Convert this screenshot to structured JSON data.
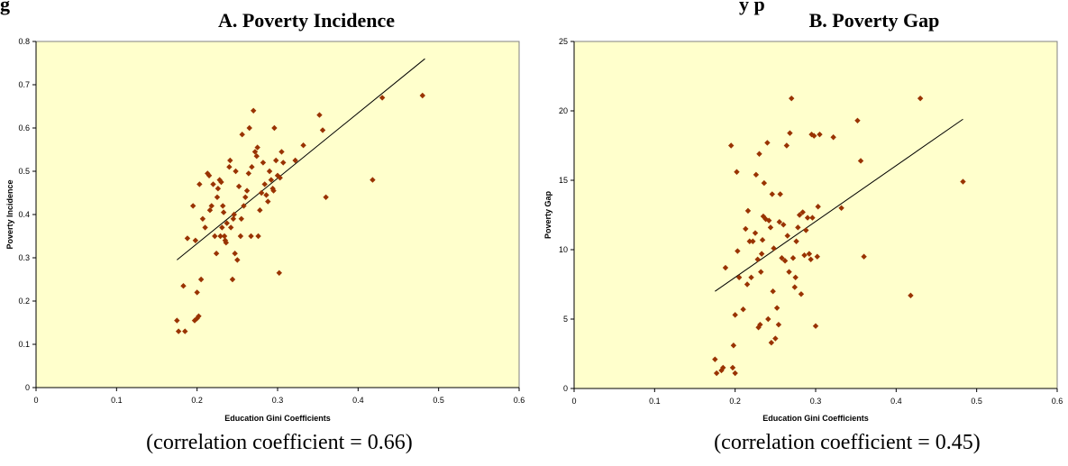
{
  "page": {
    "cropped_line_left": "g",
    "cropped_line_right": "y      p"
  },
  "chart_data": [
    {
      "type": "scatter",
      "panel_title": "A. Poverty Incidence",
      "caption": "(correlation coefficient = 0.66)",
      "xlabel": "Education Gini Coefficients",
      "ylabel": "Poverty Incidence",
      "xlim": [
        0,
        0.6
      ],
      "ylim": [
        0,
        0.8
      ],
      "x_ticks": [
        "0",
        "0.1",
        "0.2",
        "0.3",
        "0.4",
        "0.5",
        "0.6"
      ],
      "y_ticks": [
        "0",
        "0.1",
        "0.2",
        "0.3",
        "0.4",
        "0.5",
        "0.6",
        "0.7",
        "0.8"
      ],
      "grid": false,
      "plot_background": "#ffffcc",
      "marker_color": "#993300",
      "trendline": {
        "x": [
          0.175,
          0.483
        ],
        "y": [
          0.295,
          0.76
        ]
      },
      "points": [
        [
          0.175,
          0.155
        ],
        [
          0.177,
          0.13
        ],
        [
          0.183,
          0.235
        ],
        [
          0.185,
          0.13
        ],
        [
          0.188,
          0.345
        ],
        [
          0.195,
          0.42
        ],
        [
          0.197,
          0.155
        ],
        [
          0.198,
          0.34
        ],
        [
          0.2,
          0.16
        ],
        [
          0.2,
          0.22
        ],
        [
          0.202,
          0.165
        ],
        [
          0.203,
          0.47
        ],
        [
          0.205,
          0.25
        ],
        [
          0.207,
          0.39
        ],
        [
          0.21,
          0.37
        ],
        [
          0.213,
          0.495
        ],
        [
          0.215,
          0.49
        ],
        [
          0.216,
          0.41
        ],
        [
          0.218,
          0.42
        ],
        [
          0.22,
          0.47
        ],
        [
          0.222,
          0.35
        ],
        [
          0.224,
          0.31
        ],
        [
          0.225,
          0.44
        ],
        [
          0.226,
          0.46
        ],
        [
          0.228,
          0.48
        ],
        [
          0.229,
          0.35
        ],
        [
          0.23,
          0.475
        ],
        [
          0.231,
          0.37
        ],
        [
          0.232,
          0.42
        ],
        [
          0.233,
          0.405
        ],
        [
          0.234,
          0.35
        ],
        [
          0.235,
          0.34
        ],
        [
          0.236,
          0.335
        ],
        [
          0.237,
          0.38
        ],
        [
          0.24,
          0.51
        ],
        [
          0.241,
          0.525
        ],
        [
          0.242,
          0.37
        ],
        [
          0.244,
          0.25
        ],
        [
          0.245,
          0.39
        ],
        [
          0.246,
          0.4
        ],
        [
          0.247,
          0.31
        ],
        [
          0.248,
          0.5
        ],
        [
          0.25,
          0.295
        ],
        [
          0.252,
          0.465
        ],
        [
          0.254,
          0.35
        ],
        [
          0.255,
          0.39
        ],
        [
          0.256,
          0.585
        ],
        [
          0.258,
          0.42
        ],
        [
          0.26,
          0.44
        ],
        [
          0.262,
          0.455
        ],
        [
          0.264,
          0.495
        ],
        [
          0.265,
          0.6
        ],
        [
          0.267,
          0.35
        ],
        [
          0.268,
          0.51
        ],
        [
          0.27,
          0.64
        ],
        [
          0.272,
          0.545
        ],
        [
          0.274,
          0.535
        ],
        [
          0.275,
          0.555
        ],
        [
          0.276,
          0.35
        ],
        [
          0.278,
          0.41
        ],
        [
          0.28,
          0.45
        ],
        [
          0.282,
          0.52
        ],
        [
          0.284,
          0.47
        ],
        [
          0.286,
          0.445
        ],
        [
          0.288,
          0.43
        ],
        [
          0.29,
          0.5
        ],
        [
          0.292,
          0.48
        ],
        [
          0.294,
          0.46
        ],
        [
          0.295,
          0.455
        ],
        [
          0.296,
          0.6
        ],
        [
          0.298,
          0.525
        ],
        [
          0.3,
          0.49
        ],
        [
          0.302,
          0.265
        ],
        [
          0.303,
          0.485
        ],
        [
          0.305,
          0.545
        ],
        [
          0.307,
          0.52
        ],
        [
          0.322,
          0.525
        ],
        [
          0.332,
          0.56
        ],
        [
          0.352,
          0.63
        ],
        [
          0.356,
          0.595
        ],
        [
          0.36,
          0.44
        ],
        [
          0.418,
          0.48
        ],
        [
          0.43,
          0.67
        ],
        [
          0.48,
          0.675
        ]
      ]
    },
    {
      "type": "scatter",
      "panel_title": "B. Poverty Gap",
      "caption": "(correlation coefficient = 0.45)",
      "xlabel": "Education Gini Coefficients",
      "ylabel": "Poverty Gap",
      "xlim": [
        0,
        0.6
      ],
      "ylim": [
        0,
        25
      ],
      "x_ticks": [
        "0",
        "0.1",
        "0.2",
        "0.3",
        "0.4",
        "0.5",
        "0.6"
      ],
      "y_ticks": [
        "0",
        "5",
        "10",
        "15",
        "20",
        "25"
      ],
      "grid": false,
      "plot_background": "#ffffcc",
      "marker_color": "#993300",
      "trendline": {
        "x": [
          0.175,
          0.483
        ],
        "y": [
          7.0,
          19.4
        ]
      },
      "points": [
        [
          0.175,
          2.1
        ],
        [
          0.177,
          1.1
        ],
        [
          0.183,
          1.3
        ],
        [
          0.185,
          1.5
        ],
        [
          0.188,
          8.7
        ],
        [
          0.195,
          17.5
        ],
        [
          0.197,
          1.5
        ],
        [
          0.198,
          3.1
        ],
        [
          0.2,
          1.1
        ],
        [
          0.2,
          5.3
        ],
        [
          0.202,
          15.6
        ],
        [
          0.203,
          9.9
        ],
        [
          0.205,
          8.0
        ],
        [
          0.21,
          5.7
        ],
        [
          0.213,
          11.5
        ],
        [
          0.215,
          7.5
        ],
        [
          0.216,
          12.8
        ],
        [
          0.218,
          10.6
        ],
        [
          0.22,
          8.0
        ],
        [
          0.222,
          10.6
        ],
        [
          0.225,
          11.2
        ],
        [
          0.226,
          15.4
        ],
        [
          0.228,
          9.3
        ],
        [
          0.229,
          4.4
        ],
        [
          0.23,
          16.9
        ],
        [
          0.231,
          4.6
        ],
        [
          0.232,
          8.4
        ],
        [
          0.233,
          9.7
        ],
        [
          0.234,
          10.7
        ],
        [
          0.235,
          12.4
        ],
        [
          0.236,
          14.8
        ],
        [
          0.238,
          12.2
        ],
        [
          0.24,
          17.7
        ],
        [
          0.241,
          5.0
        ],
        [
          0.242,
          12.1
        ],
        [
          0.244,
          11.6
        ],
        [
          0.245,
          3.3
        ],
        [
          0.246,
          14.0
        ],
        [
          0.247,
          7.0
        ],
        [
          0.248,
          10.1
        ],
        [
          0.25,
          3.6
        ],
        [
          0.252,
          5.8
        ],
        [
          0.254,
          4.6
        ],
        [
          0.255,
          12.0
        ],
        [
          0.256,
          14.0
        ],
        [
          0.258,
          9.4
        ],
        [
          0.26,
          11.8
        ],
        [
          0.262,
          9.2
        ],
        [
          0.264,
          17.5
        ],
        [
          0.265,
          11.0
        ],
        [
          0.267,
          8.4
        ],
        [
          0.268,
          18.4
        ],
        [
          0.27,
          20.9
        ],
        [
          0.272,
          9.4
        ],
        [
          0.274,
          7.3
        ],
        [
          0.275,
          8.0
        ],
        [
          0.276,
          10.6
        ],
        [
          0.278,
          11.6
        ],
        [
          0.28,
          12.5
        ],
        [
          0.282,
          6.8
        ],
        [
          0.284,
          12.7
        ],
        [
          0.286,
          9.6
        ],
        [
          0.288,
          11.4
        ],
        [
          0.29,
          12.3
        ],
        [
          0.292,
          9.7
        ],
        [
          0.294,
          9.3
        ],
        [
          0.295,
          18.3
        ],
        [
          0.296,
          12.3
        ],
        [
          0.298,
          18.2
        ],
        [
          0.3,
          4.5
        ],
        [
          0.302,
          9.5
        ],
        [
          0.303,
          13.1
        ],
        [
          0.305,
          18.3
        ],
        [
          0.322,
          18.1
        ],
        [
          0.332,
          13.0
        ],
        [
          0.352,
          19.3
        ],
        [
          0.356,
          16.4
        ],
        [
          0.36,
          9.5
        ],
        [
          0.418,
          6.7
        ],
        [
          0.43,
          20.9
        ],
        [
          0.483,
          14.9
        ]
      ]
    }
  ]
}
